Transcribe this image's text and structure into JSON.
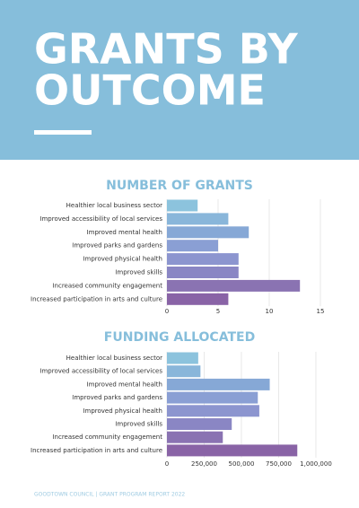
{
  "header": {
    "title_lines": [
      "GRANTS BY",
      "OUTCOME"
    ]
  },
  "chart_data": [
    {
      "type": "barh",
      "title": "NUMBER OF GRANTS",
      "categories": [
        "Healthier local business sector",
        "Improved accessibility of local services",
        "Improved mental health",
        "Improved parks and gardens",
        "Improved physical health",
        "Improved skills",
        "Increased community engagement",
        "Increased participation in arts and culture"
      ],
      "values": [
        3,
        6,
        8,
        5,
        7,
        7,
        13,
        6
      ],
      "colors": [
        "#8cc3dd",
        "#89b6da",
        "#86a8d6",
        "#8a9fd4",
        "#8c95cf",
        "#8a86c4",
        "#8a73b2",
        "#8963a6"
      ],
      "xlim": [
        0,
        15
      ],
      "xticks": [
        0,
        5,
        10,
        15
      ],
      "grid": true
    },
    {
      "type": "barh",
      "title": "FUNDING ALLOCATED",
      "categories": [
        "Healthier local business sector",
        "Improved accessibility of local services",
        "Improved mental health",
        "Improved parks and gardens",
        "Improved physical health",
        "Improved skills",
        "Increased community engagement",
        "Increased participation in arts and culture"
      ],
      "values": [
        210000,
        225000,
        690000,
        610000,
        620000,
        435000,
        375000,
        875000
      ],
      "colors": [
        "#8cc3dd",
        "#89b6da",
        "#86a8d6",
        "#8a9fd4",
        "#8c95cf",
        "#8a86c4",
        "#8a73b2",
        "#8963a6"
      ],
      "xlim": [
        0,
        1000000
      ],
      "xticks": [
        0,
        {
          "value": 250000,
          "label": "250,000"
        },
        {
          "value": 500000,
          "label": "500,000"
        },
        {
          "value": 750000,
          "label": "750,000"
        },
        {
          "value": 1000000,
          "label": "1,000,000"
        }
      ],
      "grid": true
    }
  ],
  "footer": {
    "text": "GOODTOWN COUNCIL | GRANT PROGRAM REPORT 2022"
  }
}
